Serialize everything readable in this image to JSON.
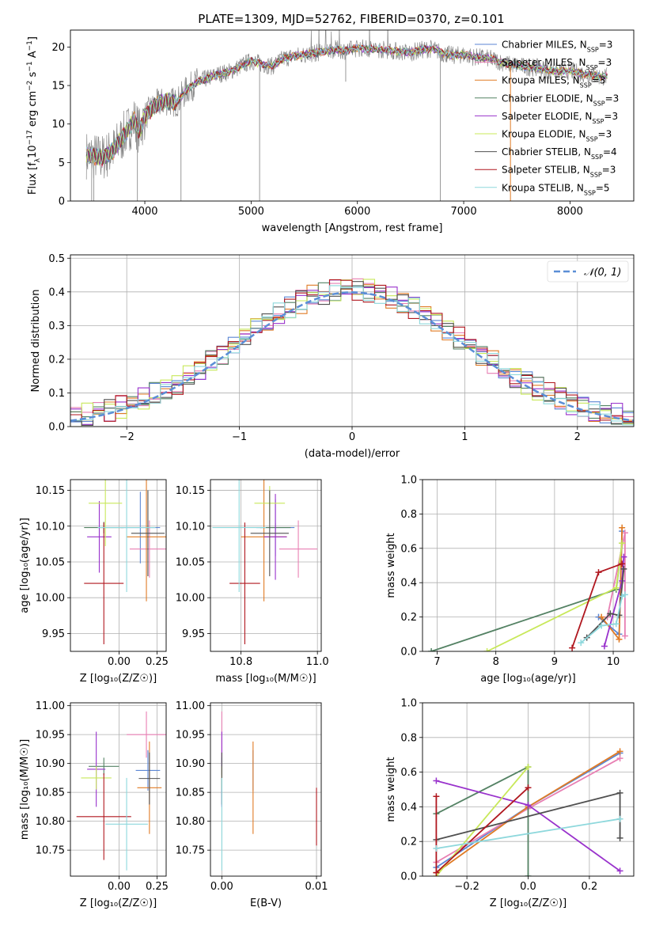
{
  "figure_title": "PLATE=1309, MJD=52762, FIBERID=0370, z=0.101",
  "colors": {
    "Chabrier MILES": "#5b86d4",
    "Salpeter MILES": "#e87fb3",
    "Kroupa MILES": "#e07b25",
    "Chabrier ELODIE": "#548264",
    "Salpeter ELODIE": "#9932cc",
    "Kroupa ELODIE": "#c8e85a",
    "Chabrier STELIB": "#505050",
    "Salpeter STELIB": "#b0171f",
    "Kroupa STELIB": "#8ed8dc",
    "normal": "#5b8ed6"
  },
  "chart_data": [
    {
      "id": "spectrum",
      "type": "line",
      "title": "PLATE=1309, MJD=52762, FIBERID=0370, z=0.101",
      "xlabel": "wavelength [Angstrom, rest frame]",
      "ylabel_parts": [
        "Flux [f",
        "λ",
        "10",
        "−17",
        " erg cm",
        "−2",
        " s",
        "−1",
        " A",
        "−1",
        "]"
      ],
      "xlim": [
        3300,
        8600
      ],
      "ylim": [
        0,
        22.2
      ],
      "xticks": [
        4000,
        5000,
        6000,
        7000,
        8000
      ],
      "yticks": [
        0,
        5,
        10,
        15,
        20
      ],
      "legend_position": "right",
      "series": [
        {
          "name": "Chabrier MILES",
          "nssp": "3"
        },
        {
          "name": "Salpeter MILES",
          "nssp": "3"
        },
        {
          "name": "Kroupa MILES",
          "nssp": "3"
        },
        {
          "name": "Chabrier ELODIE",
          "nssp": "3"
        },
        {
          "name": "Salpeter ELODIE",
          "nssp": "3"
        },
        {
          "name": "Kroupa ELODIE",
          "nssp": "3"
        },
        {
          "name": "Chabrier STELIB",
          "nssp": "4"
        },
        {
          "name": "Salpeter STELIB",
          "nssp": "3"
        },
        {
          "name": "Kroupa STELIB",
          "nssp": "5"
        }
      ],
      "model_curve": [
        [
          3450,
          6.0
        ],
        [
          3600,
          5.6
        ],
        [
          3700,
          6.5
        ],
        [
          3800,
          8.5
        ],
        [
          3900,
          10.5
        ],
        [
          3950,
          9.0
        ],
        [
          4000,
          11.0
        ],
        [
          4100,
          12.5
        ],
        [
          4200,
          13.0
        ],
        [
          4300,
          12.8
        ],
        [
          4400,
          14.5
        ],
        [
          4500,
          15.5
        ],
        [
          4600,
          16.0
        ],
        [
          4700,
          16.5
        ],
        [
          4800,
          16.8
        ],
        [
          4900,
          17.5
        ],
        [
          5000,
          18.2
        ],
        [
          5100,
          17.8
        ],
        [
          5200,
          17.5
        ],
        [
          5300,
          18.5
        ],
        [
          5400,
          18.8
        ],
        [
          5500,
          19.0
        ],
        [
          5600,
          19.2
        ],
        [
          5700,
          19.5
        ],
        [
          5800,
          19.7
        ],
        [
          5900,
          19.5
        ],
        [
          6000,
          19.9
        ],
        [
          6100,
          19.8
        ],
        [
          6200,
          19.7
        ],
        [
          6300,
          19.6
        ],
        [
          6400,
          19.4
        ],
        [
          6500,
          19.3
        ],
        [
          6600,
          19.6
        ],
        [
          6700,
          19.8
        ],
        [
          6800,
          19.2
        ],
        [
          6900,
          18.9
        ],
        [
          7000,
          19.0
        ],
        [
          7100,
          18.7
        ],
        [
          7200,
          18.6
        ],
        [
          7300,
          18.3
        ],
        [
          7400,
          17.8
        ],
        [
          7500,
          17.6
        ],
        [
          7600,
          17.4
        ],
        [
          7700,
          17.3
        ],
        [
          7800,
          17.0
        ],
        [
          7900,
          16.8
        ],
        [
          8000,
          16.9
        ],
        [
          8100,
          16.6
        ],
        [
          8200,
          16.4
        ],
        [
          8300,
          16.1
        ],
        [
          8350,
          16.2
        ]
      ],
      "spikes": [
        [
          3500,
          0
        ],
        [
          3520,
          0
        ],
        [
          3930,
          0
        ],
        [
          4340,
          0
        ],
        [
          5080,
          0
        ],
        [
          5890,
          15.5
        ],
        [
          6780,
          0
        ],
        [
          7440,
          0
        ]
      ]
    },
    {
      "id": "residuals",
      "type": "histogram",
      "xlabel": "(data-model)/error",
      "ylabel": "Normed distribution",
      "xlim": [
        -2.5,
        2.5
      ],
      "ylim": [
        0,
        0.51
      ],
      "xticks": [
        -2,
        -1,
        0,
        1,
        2
      ],
      "xtick_labels": [
        "−2",
        "−1",
        "0",
        "1",
        "2"
      ],
      "yticks": [
        0,
        0.1,
        0.2,
        0.3,
        0.4,
        0.5
      ],
      "ytick_labels": [
        "0.0",
        "0.1",
        "0.2",
        "0.3",
        "0.4",
        "0.5"
      ],
      "bins": 50,
      "legend_label": "𝒩(0, 1)",
      "legend_position": "top-right"
    },
    {
      "id": "age_vs_Z",
      "type": "errorbar",
      "xlabel": "Z [log₁₀(Z/Z☉)]",
      "ylabel": "age  [log₁₀(age/yr)]",
      "xlim": [
        -0.32,
        0.31
      ],
      "ylim": [
        9.925,
        10.165
      ],
      "xticks": [
        0,
        0.25
      ],
      "xtick_labels": [
        "0.00",
        "0.25"
      ],
      "yticks": [
        9.95,
        10.0,
        10.05,
        10.1,
        10.15
      ],
      "ytick_labels": [
        "9.95",
        "10.00",
        "10.05",
        "10.10",
        "10.15"
      ],
      "points": [
        {
          "series": "Chabrier MILES",
          "x": 0.14,
          "y": 10.098,
          "xerr": 0.13,
          "yerr": 0.05
        },
        {
          "series": "Salpeter MILES",
          "x": 0.2,
          "y": 10.068,
          "xerr": 0.13,
          "yerr": 0.04
        },
        {
          "series": "Kroupa MILES",
          "x": 0.18,
          "y": 10.085,
          "xerr": 0.13,
          "yerr": 0.09
        },
        {
          "series": "Chabrier ELODIE",
          "x": -0.1,
          "y": 10.098,
          "xerr": 0.13,
          "yerr": 0.008
        },
        {
          "series": "Salpeter ELODIE",
          "x": -0.13,
          "y": 10.085,
          "xerr": 0.08,
          "yerr": 0.05
        },
        {
          "series": "Kroupa ELODIE",
          "x": -0.09,
          "y": 10.132,
          "xerr": 0.11,
          "yerr": 0.06
        },
        {
          "series": "Chabrier STELIB",
          "x": 0.19,
          "y": 10.09,
          "xerr": 0.11,
          "yerr": 0.06
        },
        {
          "series": "Salpeter STELIB",
          "x": -0.1,
          "y": 10.02,
          "xerr": 0.13,
          "yerr": 0.085
        },
        {
          "series": "Kroupa STELIB",
          "x": 0.05,
          "y": 10.098,
          "xerr": 0.19,
          "yerr": 0.09
        }
      ]
    },
    {
      "id": "age_vs_mass",
      "type": "errorbar",
      "xlabel": "mass [log₁₀(M/M☉)]",
      "ylabel": "",
      "xlim": [
        10.72,
        11.01
      ],
      "ylim": [
        9.925,
        10.165
      ],
      "xticks": [
        10.8,
        11.0
      ],
      "xtick_labels": [
        "10.8",
        "11.0"
      ],
      "yticks": [
        9.95,
        10.0,
        10.05,
        10.1,
        10.15
      ],
      "ytick_labels": [
        "9.95",
        "10.00",
        "10.05",
        "10.10",
        "10.15"
      ],
      "points": [
        {
          "series": "Chabrier MILES",
          "x": 10.89,
          "y": 10.098,
          "xerr": 0.05,
          "yerr": 0.04
        },
        {
          "series": "Salpeter MILES",
          "x": 10.95,
          "y": 10.068,
          "xerr": 0.05,
          "yerr": 0.04
        },
        {
          "series": "Kroupa MILES",
          "x": 10.86,
          "y": 10.085,
          "xerr": 0.06,
          "yerr": 0.09
        },
        {
          "series": "Chabrier ELODIE",
          "x": 10.89,
          "y": 10.098,
          "xerr": 0.04,
          "yerr": 0.006
        },
        {
          "series": "Salpeter ELODIE",
          "x": 10.89,
          "y": 10.085,
          "xerr": 0.03,
          "yerr": 0.06
        },
        {
          "series": "Kroupa ELODIE",
          "x": 10.875,
          "y": 10.132,
          "xerr": 0.04,
          "yerr": 0.024
        },
        {
          "series": "Chabrier STELIB",
          "x": 10.875,
          "y": 10.09,
          "xerr": 0.05,
          "yerr": 0.06
        },
        {
          "series": "Salpeter STELIB",
          "x": 10.81,
          "y": 10.02,
          "xerr": 0.04,
          "yerr": 0.085
        },
        {
          "series": "Kroupa STELIB",
          "x": 10.795,
          "y": 10.098,
          "xerr": 0.07,
          "yerr": 0.09
        }
      ]
    },
    {
      "id": "mass_weight_vs_age",
      "type": "line",
      "xlabel": "age  [log₁₀(age/yr)]",
      "ylabel": "mass weight",
      "xlim": [
        6.75,
        10.35
      ],
      "ylim": [
        0,
        1
      ],
      "xticks": [
        7,
        8,
        9,
        10
      ],
      "yticks": [
        0,
        0.2,
        0.4,
        0.6,
        0.8,
        1.0
      ],
      "ytick_labels": [
        "0.0",
        "0.2",
        "0.4",
        "0.6",
        "0.8",
        "1.0"
      ],
      "series": [
        {
          "name": "Chabrier MILES",
          "x": [
            9.75,
            10.1,
            10.15
          ],
          "y": [
            0.2,
            0.1,
            0.7
          ]
        },
        {
          "name": "Salpeter MILES",
          "x": [
            9.9,
            10.2,
            10.2
          ],
          "y": [
            0.2,
            0.69,
            0.09
          ]
        },
        {
          "name": "Kroupa MILES",
          "x": [
            9.8,
            10.1,
            10.15
          ],
          "y": [
            0.2,
            0.07,
            0.72
          ]
        },
        {
          "name": "Chabrier ELODIE",
          "x": [
            6.9,
            10.05,
            10.15
          ],
          "y": [
            0.0,
            0.36,
            0.63
          ]
        },
        {
          "name": "Salpeter ELODIE",
          "x": [
            9.85,
            10.15,
            10.18
          ],
          "y": [
            0.03,
            0.41,
            0.55
          ]
        },
        {
          "name": "Kroupa ELODIE",
          "x": [
            7.85,
            10.05,
            10.15
          ],
          "y": [
            0.0,
            0.37,
            0.63
          ]
        },
        {
          "name": "Chabrier STELIB",
          "x": [
            9.55,
            9.95,
            10.1,
            10.18
          ],
          "y": [
            0.08,
            0.22,
            0.21,
            0.48
          ]
        },
        {
          "name": "Salpeter STELIB",
          "x": [
            9.3,
            9.75,
            10.15
          ],
          "y": [
            0.02,
            0.46,
            0.51
          ]
        },
        {
          "name": "Kroupa STELIB",
          "x": [
            9.45,
            9.8,
            10.05,
            10.15,
            10.2
          ],
          "y": [
            0.05,
            0.15,
            0.16,
            0.32,
            0.33
          ]
        }
      ]
    },
    {
      "id": "mass_vs_Z",
      "type": "errorbar",
      "xlabel": "Z [log₁₀(Z/Z☉)]",
      "ylabel": "mass [log₁₀(M/M☉)]",
      "xlim": [
        -0.32,
        0.31
      ],
      "ylim": [
        10.705,
        11.005
      ],
      "xticks": [
        0,
        0.25
      ],
      "xtick_labels": [
        "0.00",
        "0.25"
      ],
      "yticks": [
        10.75,
        10.8,
        10.85,
        10.9,
        10.95,
        11.0
      ],
      "ytick_labels": [
        "10.75",
        "10.80",
        "10.85",
        "10.90",
        "10.95",
        "11.00"
      ],
      "points": [
        {
          "series": "Chabrier MILES",
          "x": 0.19,
          "y": 10.888,
          "xerr": 0.08,
          "yerr": 0.035
        },
        {
          "series": "Salpeter MILES",
          "x": 0.18,
          "y": 10.95,
          "xerr": 0.13,
          "yerr": 0.04
        },
        {
          "series": "Kroupa MILES",
          "x": 0.2,
          "y": 10.858,
          "xerr": 0.08,
          "yerr": 0.08
        },
        {
          "series": "Chabrier ELODIE",
          "x": -0.1,
          "y": 10.895,
          "xerr": 0.1,
          "yerr": 0.015
        },
        {
          "series": "Salpeter ELODIE",
          "x": -0.15,
          "y": 10.89,
          "xerr": 0.06,
          "yerr": 0.065
        },
        {
          "series": "Kroupa ELODIE",
          "x": -0.15,
          "y": 10.875,
          "xerr": 0.1,
          "yerr": 0.02
        },
        {
          "series": "Chabrier STELIB",
          "x": 0.2,
          "y": 10.874,
          "xerr": 0.07,
          "yerr": 0.045
        },
        {
          "series": "Salpeter STELIB",
          "x": -0.1,
          "y": 10.808,
          "xerr": 0.18,
          "yerr": 0.075
        },
        {
          "series": "Kroupa STELIB",
          "x": 0.05,
          "y": 10.795,
          "xerr": 0.14,
          "yerr": 0.08
        }
      ]
    },
    {
      "id": "mass_vs_EBV",
      "type": "errorbar",
      "xlabel": "E(B-V)",
      "ylabel": "",
      "xlim": [
        -0.0012,
        0.0105
      ],
      "ylim": [
        10.705,
        11.005
      ],
      "xticks": [
        0,
        0.01
      ],
      "xtick_labels": [
        "0.00",
        "0.01"
      ],
      "yticks": [
        10.75,
        10.8,
        10.85,
        10.9,
        10.95,
        11.0
      ],
      "ytick_labels": [
        "10.75",
        "10.80",
        "10.85",
        "10.90",
        "10.95",
        "11.00"
      ],
      "points": [
        {
          "series": "Chabrier MILES",
          "x": 0.0033,
          "y": 10.888,
          "xerr": 0,
          "yerr": 0.035
        },
        {
          "series": "Salpeter MILES",
          "x": 0.0,
          "y": 10.95,
          "xerr": 0,
          "yerr": 0.04
        },
        {
          "series": "Kroupa MILES",
          "x": 0.0033,
          "y": 10.858,
          "xerr": 0,
          "yerr": 0.08
        },
        {
          "series": "Chabrier ELODIE",
          "x": 0.0,
          "y": 10.895,
          "xerr": 0,
          "yerr": 0.015
        },
        {
          "series": "Salpeter ELODIE",
          "x": 0.0,
          "y": 10.89,
          "xerr": 0,
          "yerr": 0.065
        },
        {
          "series": "Kroupa ELODIE",
          "x": 0.0,
          "y": 10.875,
          "xerr": 0,
          "yerr": 0.02
        },
        {
          "series": "Chabrier STELIB",
          "x": 0.0,
          "y": 10.874,
          "xerr": 0,
          "yerr": 0.045
        },
        {
          "series": "Salpeter STELIB",
          "x": 0.01,
          "y": 10.808,
          "xerr": 0,
          "yerr": 0.05
        },
        {
          "series": "Kroupa STELIB",
          "x": 0.0,
          "y": 10.795,
          "xerr": 0,
          "yerr": 0.08
        }
      ]
    },
    {
      "id": "mass_weight_vs_Z",
      "type": "line",
      "xlabel": "Z [log₁₀(Z/Z☉)]",
      "ylabel": "mass weight",
      "xlim": [
        -0.345,
        0.345
      ],
      "ylim": [
        0,
        1
      ],
      "xticks": [
        -0.2,
        0,
        0.2
      ],
      "xtick_labels": [
        "−0.2",
        "0.0",
        "0.2"
      ],
      "yticks": [
        0,
        0.2,
        0.4,
        0.6,
        0.8,
        1.0
      ],
      "ytick_labels": [
        "0.0",
        "0.2",
        "0.4",
        "0.6",
        "0.8",
        "1.0"
      ],
      "series": [
        {
          "name": "Chabrier MILES",
          "x": [
            -0.3,
            0.0,
            0.3
          ],
          "y": [
            0.05,
            0.4,
            0.71
          ]
        },
        {
          "name": "Salpeter MILES",
          "x": [
            -0.3,
            0.0,
            0.3
          ],
          "y": [
            0.08,
            0.39,
            0.68
          ]
        },
        {
          "name": "Kroupa MILES",
          "x": [
            -0.3,
            0.0,
            0.3
          ],
          "y": [
            0.02,
            0.4,
            0.72
          ]
        },
        {
          "name": "Chabrier ELODIE",
          "x": [
            -0.3,
            0.0,
            0.0
          ],
          "y": [
            0.36,
            0.63,
            0.0
          ]
        },
        {
          "name": "Salpeter ELODIE",
          "x": [
            -0.3,
            0.0,
            0.3
          ],
          "y": [
            0.55,
            0.41,
            0.03
          ]
        },
        {
          "name": "Kroupa ELODIE",
          "x": [
            -0.3,
            0.0
          ],
          "y": [
            0.0,
            0.63
          ]
        },
        {
          "name": "Chabrier STELIB",
          "x": [
            -0.3,
            0.3,
            0.3
          ],
          "y": [
            0.21,
            0.48,
            0.22
          ]
        },
        {
          "name": "Salpeter STELIB",
          "x": [
            -0.3,
            -0.3,
            0.0
          ],
          "y": [
            0.46,
            0.02,
            0.51
          ]
        },
        {
          "name": "Kroupa STELIB",
          "x": [
            -0.3,
            0.3
          ],
          "y": [
            0.16,
            0.33
          ]
        }
      ]
    }
  ]
}
